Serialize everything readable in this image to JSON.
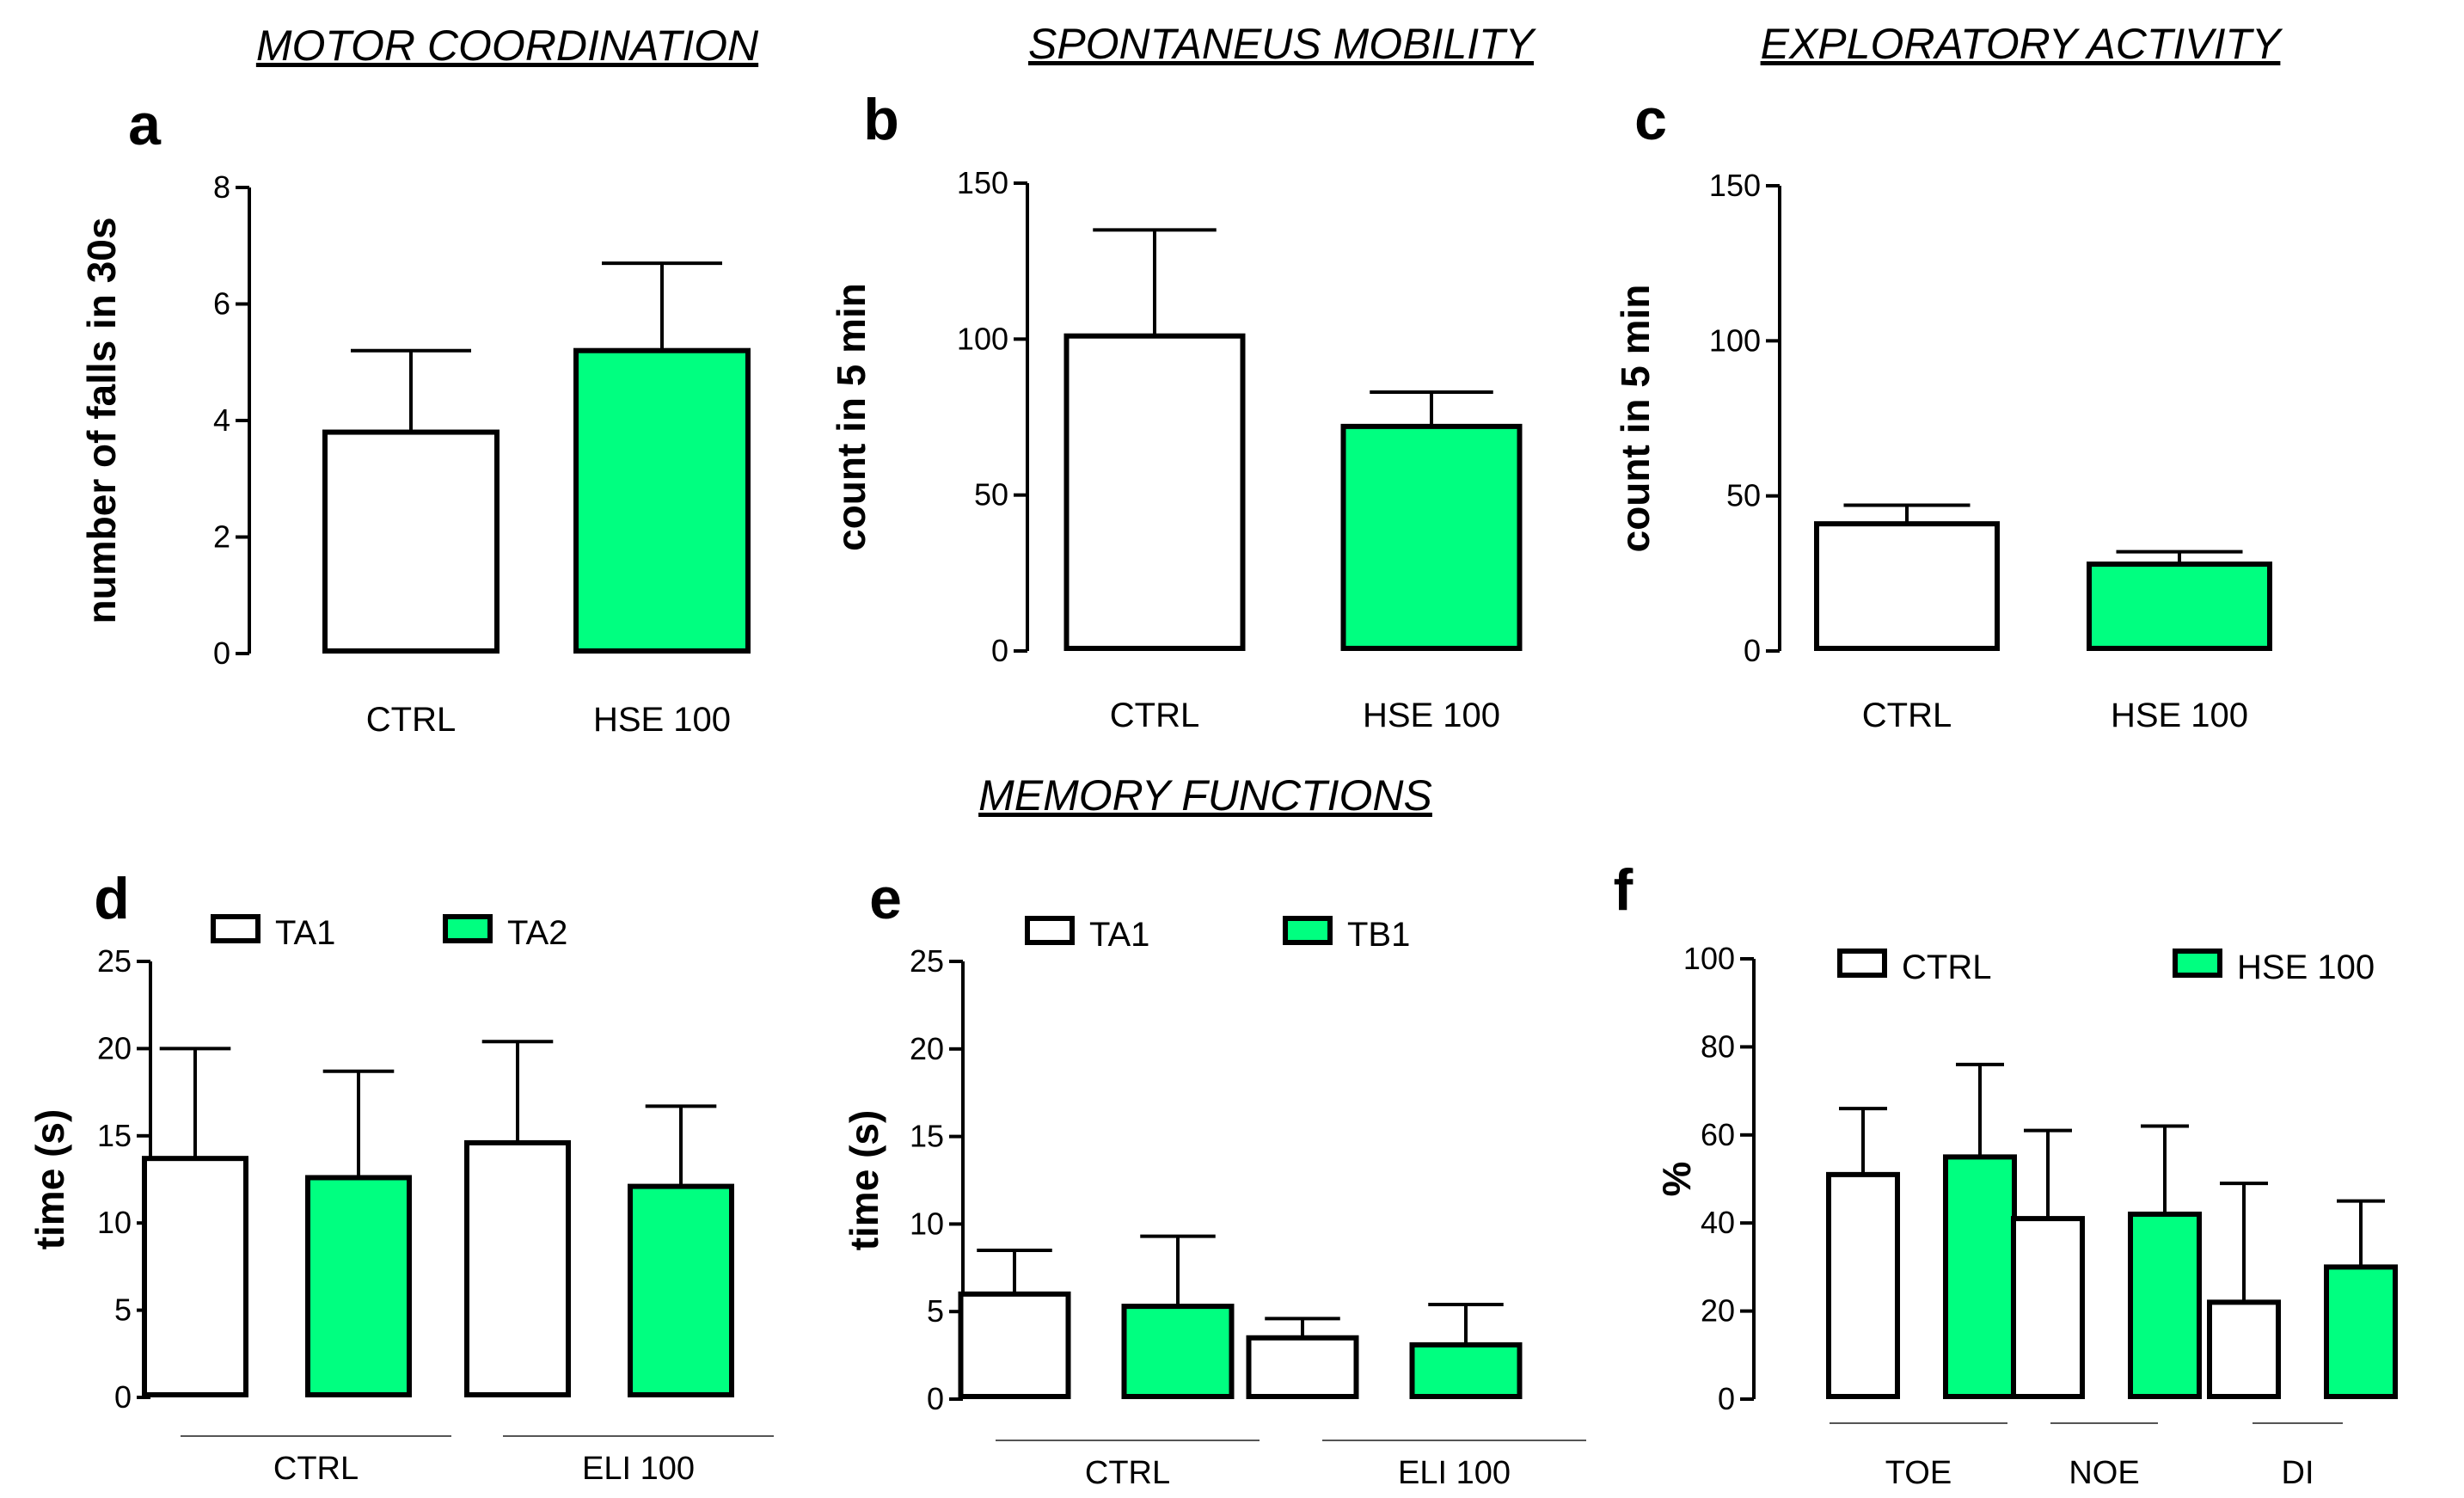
{
  "section_titles": {
    "motor": "MOTOR COORDINATION",
    "spontaneous": "SPONTANEUS MOBILITY",
    "exploratory": "EXPLORATORY ACTIVITY",
    "memory": "MEMORY FUNCTIONS"
  },
  "colors": {
    "control_fill": "#ffffff",
    "treated_fill": "#00ff80",
    "stroke": "#000000"
  },
  "chart_data": [
    {
      "id": "a",
      "type": "bar",
      "title": "MOTOR COORDINATION",
      "ylabel": "number of falls in 30s",
      "ylim": [
        0,
        8
      ],
      "yticks": [
        0,
        2,
        4,
        6,
        8
      ],
      "categories": [
        "CTRL",
        "HSE 100"
      ],
      "series": [
        {
          "name": "",
          "values": [
            3.8,
            5.2
          ],
          "errors": [
            1.4,
            1.5
          ]
        }
      ]
    },
    {
      "id": "b",
      "type": "bar",
      "title": "SPONTANEUS MOBILITY",
      "ylabel": "count in 5 min",
      "ylim": [
        0,
        150
      ],
      "yticks": [
        0,
        50,
        100,
        150
      ],
      "categories": [
        "CTRL",
        "HSE 100"
      ],
      "series": [
        {
          "name": "",
          "values": [
            101,
            72
          ],
          "errors": [
            34,
            11
          ]
        }
      ]
    },
    {
      "id": "c",
      "type": "bar",
      "title": "EXPLORATORY ACTIVITY",
      "ylabel": "count in 5 min",
      "ylim": [
        0,
        150
      ],
      "yticks": [
        0,
        50,
        100,
        150
      ],
      "categories": [
        "CTRL",
        "HSE 100"
      ],
      "series": [
        {
          "name": "",
          "values": [
            41,
            28
          ],
          "errors": [
            6,
            4
          ]
        }
      ]
    },
    {
      "id": "d",
      "type": "bar",
      "ylabel": "time (s)",
      "ylim": [
        0,
        25
      ],
      "yticks": [
        0,
        5,
        10,
        15,
        20,
        25
      ],
      "categories": [
        "CTRL",
        "ELI 100"
      ],
      "series": [
        {
          "name": "TA1",
          "values": [
            13.7,
            14.6
          ],
          "errors": [
            6.3,
            5.8
          ]
        },
        {
          "name": "TA2",
          "values": [
            12.6,
            12.1
          ],
          "errors": [
            6.1,
            4.6
          ]
        }
      ]
    },
    {
      "id": "e",
      "type": "bar",
      "ylabel": "time (s)",
      "ylim": [
        0,
        25
      ],
      "yticks": [
        0,
        5,
        10,
        15,
        20,
        25
      ],
      "categories": [
        "CTRL",
        "ELI 100"
      ],
      "series": [
        {
          "name": "TA1",
          "values": [
            6.0,
            3.5
          ],
          "errors": [
            2.5,
            1.1
          ]
        },
        {
          "name": "TB1",
          "values": [
            5.3,
            3.1
          ],
          "errors": [
            4.0,
            2.3
          ]
        }
      ]
    },
    {
      "id": "f",
      "type": "bar",
      "ylabel": "%",
      "ylim": [
        0,
        100
      ],
      "yticks": [
        0,
        20,
        40,
        60,
        80,
        100
      ],
      "categories": [
        "TOE",
        "NOE",
        "DI"
      ],
      "series": [
        {
          "name": "CTRL",
          "values": [
            51,
            41,
            22
          ],
          "errors": [
            15,
            20,
            27
          ]
        },
        {
          "name": "HSE 100",
          "values": [
            55,
            42,
            30
          ],
          "errors": [
            21,
            20,
            15
          ]
        }
      ]
    }
  ]
}
